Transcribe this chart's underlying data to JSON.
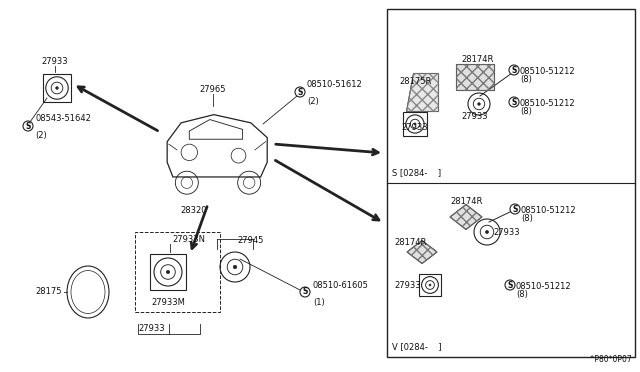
{
  "bg_color": "#ffffff",
  "line_color": "#222222",
  "text_color": "#111111",
  "part_number_bottom": "^P80*0P07",
  "labels": {
    "top_speaker": "27933",
    "top_screw_label": "08543-51642",
    "top_screw_qty": "(2)",
    "body_label": "27965",
    "body_screw_label": "08510-51612",
    "body_screw_qty": "(2)",
    "body_28320": "28320",
    "bottom_28175": "28175",
    "bottom_27933N": "27933N",
    "bottom_27933": "27933",
    "bottom_27933M": "27933M",
    "bottom_27945": "27945",
    "bottom_screw_label": "08510-61605",
    "bottom_screw_qty": "(1)",
    "sr_28175R": "28175R",
    "sr_28174R": "28174R",
    "sr_27933a": "27933",
    "sr_27933b": "27933",
    "sr_screw_label": "08510-51212",
    "sr_screw_qty": "(8)",
    "sr_label": "S [0284-    ]",
    "vr_28174Ra": "28174R",
    "vr_28174Rb": "28174R",
    "vr_27933a": "27933",
    "vr_27933b": "27933",
    "vr_screw_label": "08510-51212",
    "vr_screw_qty": "(8)",
    "vr_label": "V [0284-    ]"
  }
}
